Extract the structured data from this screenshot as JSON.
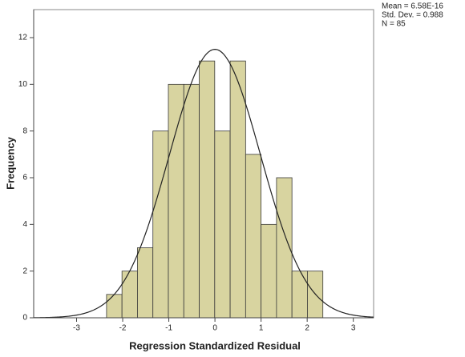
{
  "chart_data": {
    "type": "histogram",
    "x_label": "Regression Standardized Residual",
    "y_label": "Frequency",
    "bins": [
      -2.35,
      -2.015,
      -1.68,
      -1.345,
      -1.01,
      -0.675,
      -0.34,
      -0.005,
      0.33,
      0.665,
      1.0,
      1.335,
      1.67,
      2.005,
      2.34
    ],
    "values": [
      1,
      2,
      3,
      8,
      10,
      10,
      11,
      8,
      11,
      7,
      4,
      6,
      2,
      2
    ],
    "color": "#d8d4a0",
    "xlim": [
      -3.93,
      3.44
    ],
    "xticks": [
      -3,
      -2,
      -1,
      0,
      1,
      2,
      3
    ],
    "ylim": [
      0,
      13.2
    ],
    "yticks": [
      0,
      2,
      4,
      6,
      8,
      10,
      12
    ],
    "stats": {
      "mean": {
        "value": 6.58e-16,
        "label": "Mean = 6.58E-16"
      },
      "sd": {
        "value": 0.988,
        "label": "Std. Dev. = 0.988"
      },
      "n": {
        "value": 85,
        "label": "N = 85"
      }
    },
    "normal_curve": true
  }
}
